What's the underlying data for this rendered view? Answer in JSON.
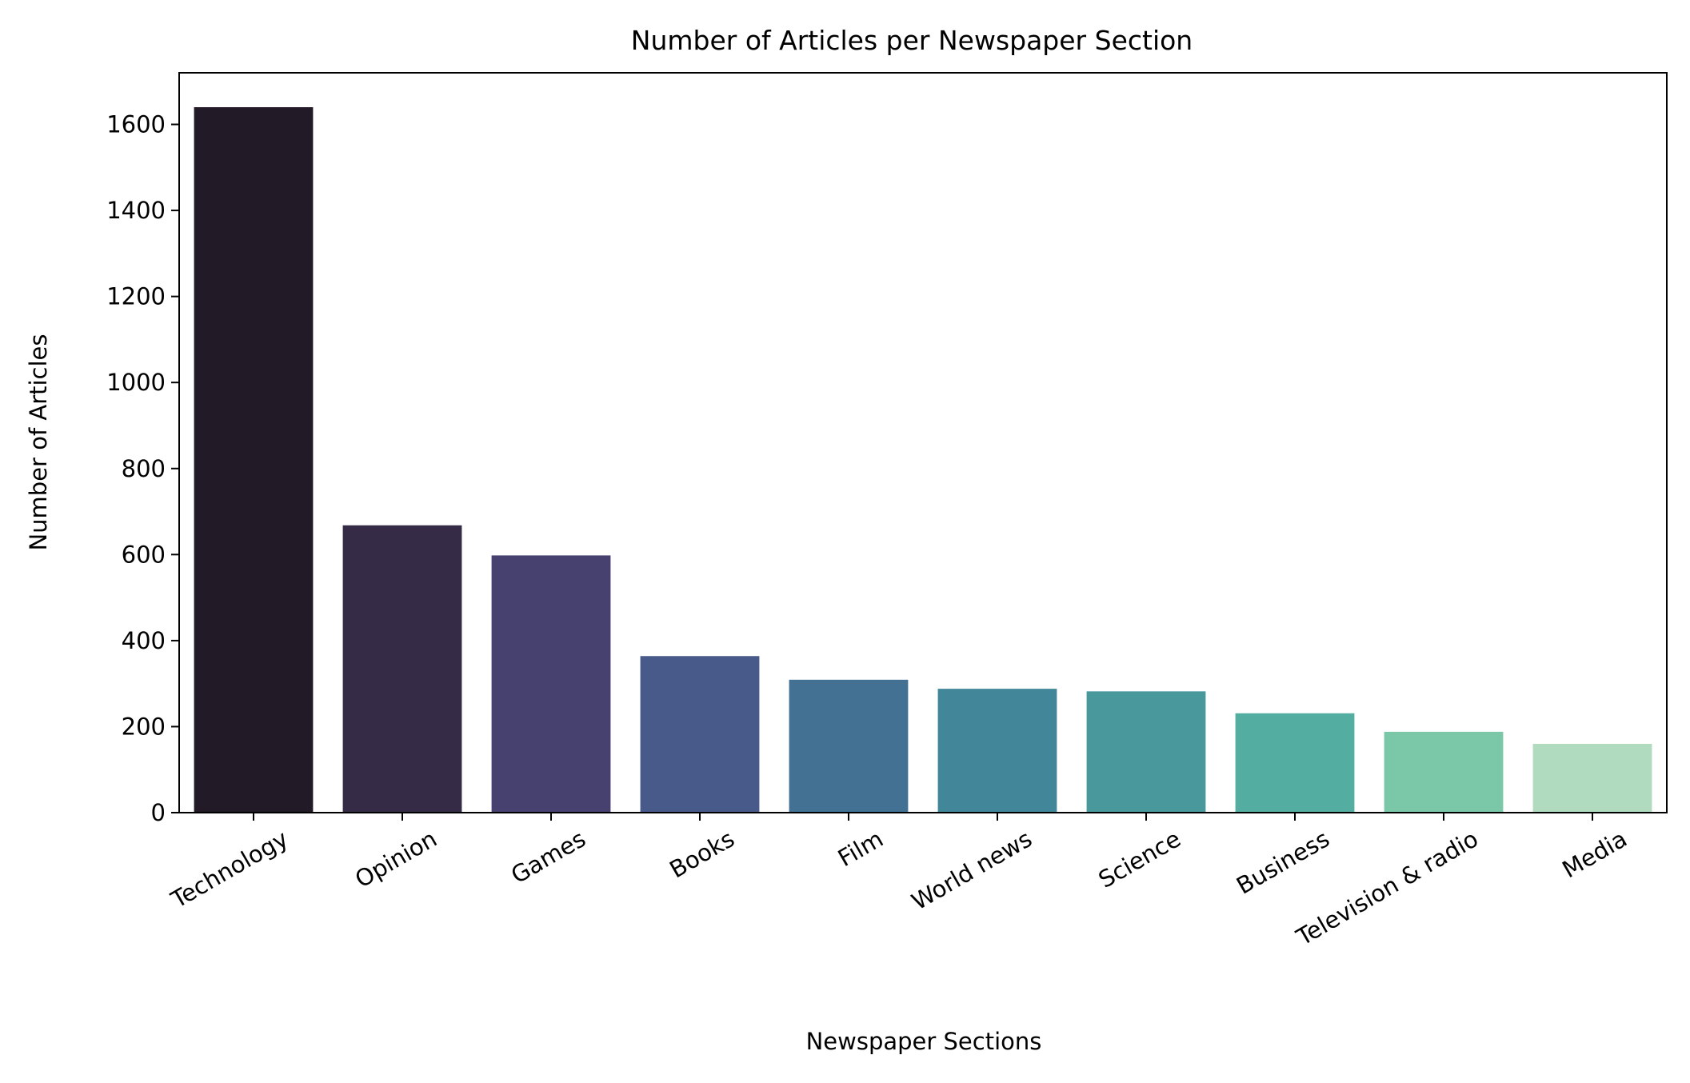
{
  "chart_data": {
    "type": "bar",
    "title": "Number of Articles per Newspaper Section",
    "xlabel": "Newspaper Sections",
    "ylabel": "Number of Articles",
    "categories": [
      "Technology",
      "Opinion",
      "Games",
      "Books",
      "Film",
      "World news",
      "Science",
      "Business",
      "Television & radio",
      "Media"
    ],
    "values": [
      1640,
      668,
      598,
      364,
      309,
      288,
      282,
      231,
      188,
      160
    ],
    "colors": [
      "#231a27",
      "#352b46",
      "#46416e",
      "#485a8a",
      "#437193",
      "#42869a",
      "#48989c",
      "#53ada0",
      "#7bc8a9",
      "#b1dbbf"
    ],
    "ylim": [
      0,
      1720
    ],
    "yticks": [
      0,
      200,
      400,
      600,
      800,
      1000,
      1200,
      1400,
      1600
    ],
    "ytick_labels": [
      "0",
      "200",
      "400",
      "600",
      "800",
      "1000",
      "1200",
      "1400",
      "1600"
    ],
    "grid": false,
    "legend": "none"
  }
}
